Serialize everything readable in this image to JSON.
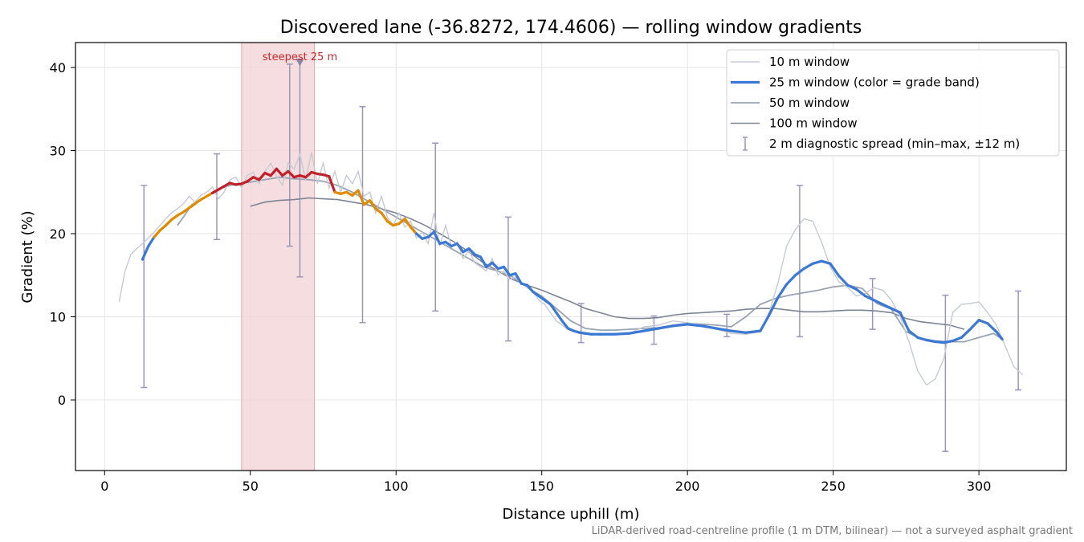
{
  "chart_data": {
    "type": "line",
    "title": "Discovered lane (-36.8272, 174.4606) — rolling window gradients",
    "xlabel": "Distance uphill (m)",
    "ylabel": "Gradient (%)",
    "xlim": [
      -10,
      330
    ],
    "ylim": [
      -8.5,
      43
    ],
    "xticks": [
      0,
      50,
      100,
      150,
      200,
      250,
      300
    ],
    "yticks": [
      0,
      10,
      20,
      30,
      40
    ],
    "grid": true,
    "legend_position": "top-right",
    "annotation": {
      "text": "steepest 25 m",
      "x": 67,
      "y": 40.5,
      "band": [
        47,
        72
      ]
    },
    "footnote": "LiDAR-derived road-centreline profile (1 m DTM, bilinear) — not a surveyed asphalt gradient",
    "colors": {
      "w10": "#c5cad3",
      "w25_low": "#3a78d4",
      "w25_mid": "#e08a00",
      "w25_high": "#c0202a",
      "w50": "#9aa3b2",
      "w100": "#7d8594",
      "errorbar": "#9b95b8",
      "band": "#f3d3d6",
      "marker": "#8a84a8"
    },
    "series": [
      {
        "name": "10 m window",
        "x": [
          5,
          7,
          9,
          11,
          13,
          15,
          17,
          19,
          21,
          23,
          25,
          27,
          29,
          31,
          33,
          35,
          37,
          39,
          41,
          43,
          45,
          47,
          49,
          51,
          53,
          55,
          57,
          59,
          61,
          63,
          65,
          67,
          69,
          71,
          73,
          75,
          77,
          79,
          81,
          83,
          85,
          87,
          89,
          91,
          93,
          95,
          97,
          99,
          101,
          103,
          105,
          107,
          109,
          111,
          113,
          115,
          117,
          119,
          121,
          123,
          125,
          127,
          129,
          131,
          133,
          135,
          137,
          139,
          141,
          143,
          145,
          147,
          149,
          151,
          153,
          155,
          157,
          159,
          161,
          163,
          165,
          167,
          170,
          175,
          180,
          185,
          190,
          195,
          200,
          205,
          210,
          215,
          220,
          225,
          228,
          231,
          234,
          237,
          240,
          243,
          246,
          249,
          252,
          255,
          258,
          261,
          264,
          267,
          270,
          273,
          276,
          279,
          282,
          285,
          288,
          291,
          294,
          297,
          300,
          303,
          306,
          309,
          312,
          315
        ],
        "values": [
          11.8,
          15.5,
          17.5,
          18.2,
          18.8,
          19.5,
          20.2,
          21.0,
          21.8,
          22.5,
          23.0,
          23.6,
          24.5,
          23.8,
          24.6,
          25.0,
          25.6,
          24.2,
          25.0,
          26.5,
          26.8,
          25.5,
          27.0,
          27.4,
          26.0,
          27.5,
          28.5,
          27.0,
          25.8,
          28.5,
          27.8,
          29.5,
          26.5,
          29.8,
          26.0,
          28.5,
          25.5,
          27.5,
          25.0,
          27.0,
          26.0,
          27.5,
          24.5,
          25.0,
          22.5,
          24.5,
          22.0,
          21.0,
          22.5,
          20.8,
          21.5,
          19.5,
          20.2,
          18.8,
          22.5,
          18.5,
          21.0,
          18.5,
          19.0,
          17.0,
          18.0,
          16.5,
          16.0,
          15.5,
          17.0,
          15.0,
          15.5,
          14.5,
          14.8,
          14.0,
          13.5,
          13.0,
          12.0,
          11.5,
          10.5,
          9.5,
          9.0,
          8.5,
          8.2,
          8.0,
          7.9,
          7.9,
          7.8,
          7.9,
          8.0,
          8.8,
          9.0,
          9.5,
          9.3,
          9.0,
          8.5,
          8.0,
          7.9,
          8.2,
          10.5,
          14.0,
          18.5,
          20.5,
          21.8,
          21.5,
          19.0,
          16.0,
          14.2,
          13.5,
          12.5,
          12.8,
          13.5,
          13.2,
          12.0,
          10.0,
          7.0,
          3.5,
          1.8,
          2.5,
          5.0,
          10.5,
          11.5,
          11.6,
          11.8,
          10.5,
          9.0,
          6.5,
          4.0,
          3.0
        ]
      },
      {
        "name": "25 m window (color = grade band)",
        "x": [
          13,
          15,
          17,
          19,
          21,
          23,
          25,
          27,
          29,
          31,
          33,
          35,
          37,
          39,
          41,
          43,
          45,
          47,
          49,
          51,
          53,
          55,
          57,
          59,
          61,
          63,
          65,
          67,
          69,
          71,
          73,
          75,
          77,
          79,
          81,
          83,
          85,
          87,
          89,
          91,
          93,
          95,
          97,
          99,
          101,
          103,
          105,
          107,
          109,
          111,
          113,
          115,
          117,
          119,
          121,
          123,
          125,
          127,
          129,
          131,
          133,
          135,
          137,
          139,
          141,
          143,
          145,
          147,
          149,
          151,
          153,
          155,
          157,
          159,
          161,
          163,
          165,
          167,
          170,
          175,
          180,
          185,
          190,
          195,
          200,
          205,
          210,
          215,
          220,
          225,
          228,
          231,
          234,
          237,
          240,
          243,
          246,
          249,
          252,
          255,
          258,
          261,
          264,
          267,
          270,
          273,
          276,
          279,
          282,
          285,
          288,
          291,
          294,
          297,
          300,
          303,
          306,
          308
        ],
        "values": [
          16.9,
          18.5,
          19.6,
          20.4,
          21.0,
          21.7,
          22.2,
          22.6,
          23.1,
          23.6,
          24.1,
          24.5,
          24.9,
          25.3,
          25.7,
          26.1,
          25.9,
          26.0,
          26.3,
          26.8,
          26.5,
          27.3,
          27.0,
          27.8,
          27.0,
          27.5,
          26.8,
          27.0,
          26.8,
          27.4,
          27.2,
          27.1,
          26.9,
          25.0,
          24.8,
          25.0,
          24.6,
          25.2,
          23.5,
          24.0,
          23.0,
          22.5,
          21.5,
          21.0,
          21.2,
          21.8,
          20.8,
          20.0,
          19.4,
          19.6,
          20.2,
          18.8,
          19.0,
          18.5,
          18.8,
          17.8,
          18.2,
          17.5,
          17.2,
          16.0,
          16.5,
          15.8,
          16.0,
          15.0,
          15.2,
          14.0,
          13.8,
          13.0,
          12.5,
          12.0,
          11.5,
          10.5,
          9.5,
          8.6,
          8.3,
          8.1,
          8.0,
          7.9,
          7.9,
          7.9,
          8.0,
          8.3,
          8.6,
          8.9,
          9.1,
          8.9,
          8.6,
          8.3,
          8.1,
          8.3,
          10.2,
          12.3,
          13.9,
          15.0,
          15.8,
          16.4,
          16.7,
          16.4,
          14.9,
          13.8,
          13.3,
          12.5,
          12.0,
          11.5,
          11.0,
          10.5,
          8.3,
          7.5,
          7.2,
          7.0,
          6.9,
          7.1,
          7.5,
          8.5,
          9.6,
          9.2,
          8.2,
          7.3
        ],
        "bands": [
          {
            "max": 20,
            "color": "w25_low"
          },
          {
            "max": 25,
            "color": "w25_mid"
          },
          {
            "max": 100,
            "color": "w25_high"
          }
        ]
      },
      {
        "name": "50 m window",
        "x": [
          25,
          30,
          35,
          40,
          45,
          50,
          55,
          60,
          65,
          70,
          75,
          80,
          85,
          90,
          95,
          100,
          105,
          110,
          115,
          120,
          125,
          130,
          135,
          140,
          145,
          150,
          155,
          160,
          165,
          170,
          175,
          180,
          185,
          190,
          195,
          200,
          205,
          210,
          215,
          220,
          225,
          230,
          235,
          240,
          245,
          250,
          255,
          260,
          265,
          270,
          275,
          280,
          285,
          290,
          295,
          300,
          305,
          308
        ],
        "values": [
          21.0,
          23.5,
          24.5,
          25.5,
          26.0,
          26.2,
          26.5,
          26.8,
          26.6,
          26.5,
          26.3,
          25.8,
          25.0,
          24.0,
          23.0,
          22.0,
          21.0,
          20.0,
          19.0,
          18.0,
          17.0,
          16.0,
          15.5,
          14.8,
          13.5,
          12.5,
          11.0,
          9.5,
          8.6,
          8.4,
          8.4,
          8.5,
          8.6,
          8.7,
          9.0,
          9.2,
          9.1,
          9.0,
          8.8,
          10.0,
          11.5,
          12.2,
          12.6,
          12.9,
          13.2,
          13.6,
          13.8,
          13.4,
          11.6,
          10.9,
          8.2,
          7.4,
          7.1,
          7.0,
          7.0,
          7.5,
          8.0,
          7.3
        ]
      },
      {
        "name": "100 m window",
        "x": [
          50,
          55,
          60,
          65,
          70,
          75,
          80,
          85,
          90,
          95,
          100,
          105,
          110,
          115,
          120,
          125,
          130,
          135,
          140,
          145,
          150,
          155,
          160,
          165,
          170,
          175,
          180,
          185,
          190,
          195,
          200,
          205,
          210,
          215,
          220,
          225,
          230,
          235,
          240,
          245,
          250,
          255,
          260,
          265,
          270,
          275,
          280,
          285,
          290,
          295
        ],
        "values": [
          23.3,
          23.8,
          24.0,
          24.1,
          24.3,
          24.2,
          24.1,
          23.8,
          23.5,
          23.0,
          22.5,
          21.8,
          21.0,
          20.0,
          19.0,
          17.8,
          16.5,
          15.5,
          14.5,
          13.8,
          13.2,
          12.5,
          11.8,
          11.0,
          10.5,
          10.0,
          9.8,
          9.8,
          9.9,
          10.2,
          10.4,
          10.5,
          10.6,
          10.7,
          10.9,
          11.0,
          11.0,
          10.8,
          10.6,
          10.6,
          10.7,
          10.8,
          10.8,
          10.7,
          10.5,
          9.8,
          9.4,
          9.2,
          9.0,
          8.5
        ]
      }
    ],
    "errorbars": {
      "name": "2 m diagnostic spread (min–max, ±12 m)",
      "points": [
        {
          "x": 13.5,
          "min": 1.5,
          "max": 25.8
        },
        {
          "x": 38.5,
          "min": 19.3,
          "max": 29.6
        },
        {
          "x": 63.5,
          "min": 18.5,
          "max": 40.4
        },
        {
          "x": 67.0,
          "min": 14.8,
          "max": 40.8
        },
        {
          "x": 88.5,
          "min": 9.3,
          "max": 35.3
        },
        {
          "x": 113.5,
          "min": 10.7,
          "max": 30.9
        },
        {
          "x": 138.5,
          "min": 7.1,
          "max": 22.0
        },
        {
          "x": 163.5,
          "min": 6.9,
          "max": 11.6
        },
        {
          "x": 188.5,
          "min": 6.7,
          "max": 10.1
        },
        {
          "x": 213.5,
          "min": 7.6,
          "max": 10.3
        },
        {
          "x": 238.5,
          "min": 7.6,
          "max": 25.8
        },
        {
          "x": 263.5,
          "min": 8.5,
          "max": 14.6
        },
        {
          "x": 288.5,
          "min": -6.2,
          "max": 12.6
        },
        {
          "x": 313.5,
          "min": 1.2,
          "max": 13.1
        }
      ]
    }
  }
}
